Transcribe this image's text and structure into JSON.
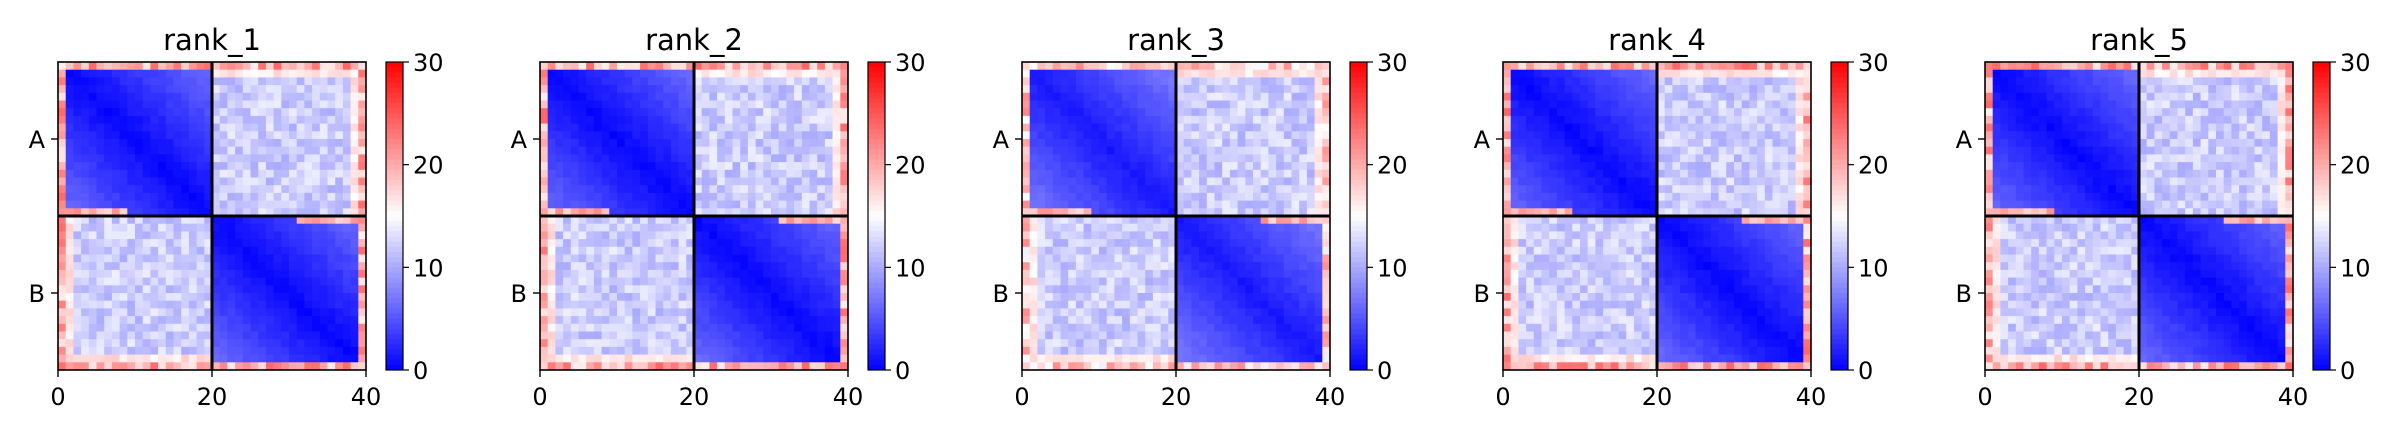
{
  "chart_data": [
    {
      "type": "heatmap",
      "title": "rank_1",
      "row_labels": [
        "A",
        "B"
      ],
      "x_ticks": [
        0,
        20,
        40
      ],
      "n": 40,
      "block_boundary": 20,
      "xlim": [
        0,
        40
      ],
      "ylim": [
        0,
        40
      ],
      "colorbar": {
        "ticks": [
          0,
          10,
          20,
          30
        ],
        "range": [
          0,
          30
        ],
        "colormap": "bwr"
      },
      "within_block_range": [
        0,
        6
      ],
      "between_block_range": [
        10,
        14
      ],
      "edge_max": 24
    },
    {
      "type": "heatmap",
      "title": "rank_2",
      "row_labels": [
        "A",
        "B"
      ],
      "x_ticks": [
        0,
        20,
        40
      ],
      "n": 40,
      "block_boundary": 20,
      "xlim": [
        0,
        40
      ],
      "ylim": [
        0,
        40
      ],
      "colorbar": {
        "ticks": [
          0,
          10,
          20,
          30
        ],
        "range": [
          0,
          30
        ],
        "colormap": "bwr"
      },
      "within_block_range": [
        0,
        6
      ],
      "between_block_range": [
        10,
        14
      ],
      "edge_max": 24
    },
    {
      "type": "heatmap",
      "title": "rank_3",
      "row_labels": [
        "A",
        "B"
      ],
      "x_ticks": [
        0,
        20,
        40
      ],
      "n": 40,
      "block_boundary": 20,
      "xlim": [
        0,
        40
      ],
      "ylim": [
        0,
        40
      ],
      "colorbar": {
        "ticks": [
          0,
          10,
          20,
          30
        ],
        "range": [
          0,
          30
        ],
        "colormap": "bwr"
      },
      "within_block_range": [
        1,
        7
      ],
      "between_block_range": [
        10,
        14
      ],
      "edge_max": 22
    },
    {
      "type": "heatmap",
      "title": "rank_4",
      "row_labels": [
        "A",
        "B"
      ],
      "x_ticks": [
        0,
        20,
        40
      ],
      "n": 40,
      "block_boundary": 20,
      "xlim": [
        0,
        40
      ],
      "ylim": [
        0,
        40
      ],
      "colorbar": {
        "ticks": [
          0,
          10,
          20,
          30
        ],
        "range": [
          0,
          30
        ],
        "colormap": "bwr"
      },
      "within_block_range": [
        0,
        6
      ],
      "between_block_range": [
        10,
        14
      ],
      "edge_max": 24
    },
    {
      "type": "heatmap",
      "title": "rank_5",
      "row_labels": [
        "A",
        "B"
      ],
      "x_ticks": [
        0,
        20,
        40
      ],
      "n": 40,
      "block_boundary": 20,
      "xlim": [
        0,
        40
      ],
      "ylim": [
        0,
        40
      ],
      "colorbar": {
        "ticks": [
          0,
          10,
          20,
          30
        ],
        "range": [
          0,
          30
        ],
        "colormap": "bwr"
      },
      "within_block_range": [
        0,
        6
      ],
      "between_block_range": [
        10,
        14
      ],
      "edge_max": 24
    }
  ]
}
